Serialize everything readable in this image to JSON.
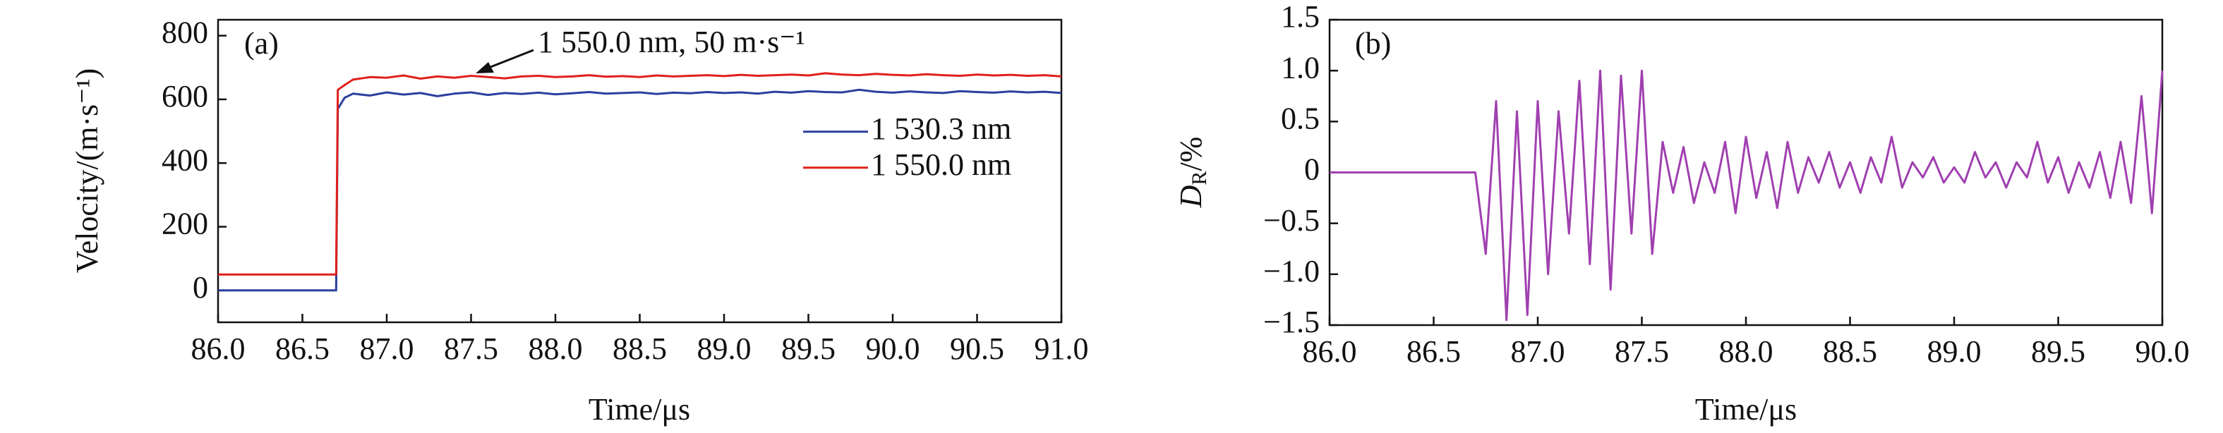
{
  "chart_data": [
    {
      "type": "line",
      "panel": "(a)",
      "xlabel": "Time/μs",
      "ylabel": "Velocity/(m·s⁻¹)",
      "annotation": "1 550.0 nm, 50 m·s⁻¹",
      "legend": "center right",
      "x": [
        86.0,
        86.7,
        86.71,
        86.75,
        86.8,
        86.9,
        87.0,
        87.1,
        87.2,
        87.3,
        87.4,
        87.5,
        87.6,
        87.7,
        87.8,
        87.9,
        88.0,
        88.1,
        88.2,
        88.3,
        88.4,
        88.5,
        88.6,
        88.7,
        88.8,
        88.9,
        89.0,
        89.1,
        89.2,
        89.3,
        89.4,
        89.5,
        89.6,
        89.7,
        89.8,
        89.9,
        90.0,
        90.1,
        90.2,
        90.3,
        90.4,
        90.5,
        90.6,
        90.7,
        90.8,
        90.9,
        91.0
      ],
      "series": [
        {
          "name": "1 530.3 nm",
          "color": "#2b3f9e",
          "values": [
            0,
            0,
            570,
            605,
            618,
            612,
            622,
            615,
            620,
            610,
            618,
            622,
            614,
            620,
            617,
            621,
            616,
            619,
            623,
            618,
            620,
            622,
            617,
            621,
            619,
            623,
            620,
            622,
            618,
            624,
            621,
            626,
            623,
            622,
            630,
            624,
            621,
            625,
            622,
            620,
            626,
            623,
            621,
            625,
            622,
            624,
            620
          ]
        },
        {
          "name": "1 550.0 nm",
          "color": "#e0201b",
          "values": [
            50,
            50,
            630,
            645,
            662,
            670,
            668,
            675,
            665,
            672,
            668,
            674,
            670,
            666,
            672,
            674,
            670,
            672,
            676,
            671,
            673,
            670,
            675,
            672,
            674,
            676,
            673,
            677,
            674,
            676,
            678,
            675,
            682,
            678,
            676,
            680,
            677,
            675,
            679,
            676,
            674,
            678,
            675,
            677,
            674,
            676,
            672
          ]
        }
      ],
      "xlim": [
        86.0,
        91.0
      ],
      "xticks": [
        {
          "value": 86.0,
          "label": "86.0"
        },
        86.5,
        {
          "value": 87.0,
          "label": "87.0"
        },
        87.5,
        {
          "value": 88.0,
          "label": "88.0"
        },
        88.5,
        {
          "value": 89.0,
          "label": "89.0"
        },
        89.5,
        {
          "value": 90.0,
          "label": "90.0"
        },
        90.5,
        {
          "value": 91.0,
          "label": "91.0"
        }
      ],
      "ylim": [
        -100,
        850
      ],
      "yticks": [
        0,
        200,
        400,
        600,
        800
      ]
    },
    {
      "type": "line",
      "panel": "(b)",
      "xlabel": "Time/μs",
      "ylabel": "D",
      "ylabel_sub": "R",
      "ylabel_suffix": "/%",
      "x": [
        86.0,
        86.7,
        86.75,
        86.8,
        86.85,
        86.9,
        86.95,
        87.0,
        87.05,
        87.1,
        87.15,
        87.2,
        87.25,
        87.3,
        87.35,
        87.4,
        87.45,
        87.5,
        87.55,
        87.6,
        87.65,
        87.7,
        87.75,
        87.8,
        87.85,
        87.9,
        87.95,
        88.0,
        88.05,
        88.1,
        88.15,
        88.2,
        88.25,
        88.3,
        88.35,
        88.4,
        88.45,
        88.5,
        88.55,
        88.6,
        88.65,
        88.7,
        88.75,
        88.8,
        88.85,
        88.9,
        88.95,
        89.0,
        89.05,
        89.1,
        89.15,
        89.2,
        89.25,
        89.3,
        89.35,
        89.4,
        89.45,
        89.5,
        89.55,
        89.6,
        89.65,
        89.7,
        89.75,
        89.8,
        89.85,
        89.9,
        89.95,
        90.0
      ],
      "series": [
        {
          "name": null,
          "color": "#a040b0",
          "values": [
            0,
            0,
            -0.8,
            0.7,
            -1.45,
            0.6,
            -1.4,
            0.7,
            -1.0,
            0.6,
            -0.6,
            0.9,
            -0.9,
            1.0,
            -1.15,
            0.95,
            -0.6,
            1.0,
            -0.8,
            0.3,
            -0.2,
            0.25,
            -0.3,
            0.1,
            -0.2,
            0.3,
            -0.4,
            0.35,
            -0.25,
            0.2,
            -0.35,
            0.3,
            -0.2,
            0.15,
            -0.1,
            0.2,
            -0.15,
            0.1,
            -0.2,
            0.15,
            -0.1,
            0.35,
            -0.15,
            0.1,
            -0.05,
            0.15,
            -0.1,
            0.05,
            -0.1,
            0.2,
            -0.05,
            0.1,
            -0.15,
            0.1,
            -0.05,
            0.3,
            -0.1,
            0.15,
            -0.2,
            0.1,
            -0.15,
            0.2,
            -0.25,
            0.3,
            -0.3,
            0.75,
            -0.4,
            1.0
          ]
        }
      ],
      "xlim": [
        86.0,
        90.0
      ],
      "xticks": [
        {
          "value": 86.0,
          "label": "86.0"
        },
        86.5,
        {
          "value": 87.0,
          "label": "87.0"
        },
        87.5,
        {
          "value": 88.0,
          "label": "88.0"
        },
        88.5,
        {
          "value": 89.0,
          "label": "89.0"
        },
        89.5,
        {
          "value": 90.0,
          "label": "90.0"
        }
      ],
      "ylim": [
        -1.5,
        1.5
      ],
      "yticks": [
        {
          "value": -1.5,
          "label": "−1.5"
        },
        {
          "value": -1.0,
          "label": "−1.0"
        },
        {
          "value": -0.5,
          "label": "−0.5"
        },
        0,
        0.5,
        {
          "value": 1.0,
          "label": "1.0"
        },
        1.5
      ]
    }
  ]
}
